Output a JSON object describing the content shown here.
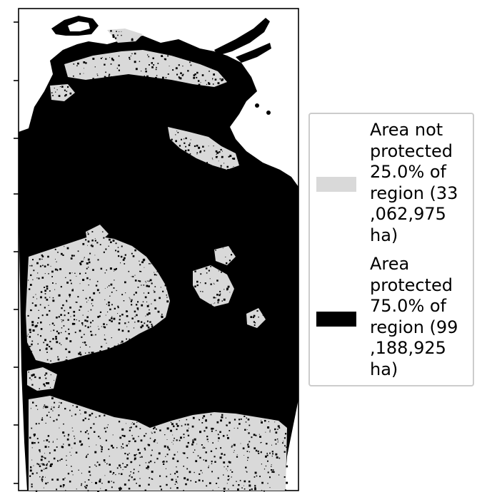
{
  "colors": {
    "not_protected": "#d9d9d9",
    "protected": "#000000",
    "frame": "#000000",
    "background": "#ffffff"
  },
  "legend": {
    "entries": [
      {
        "label": "Area not\nprotected\n25.0% of\nregion (33\n,062,975\nha)",
        "color": "#d9d9d9"
      },
      {
        "label": "Area\nprotected\n75.0% of\nregion (99\n,188,925\nha)",
        "color": "#000000"
      }
    ]
  },
  "map_data": {
    "regions": [
      {
        "name": "Area not protected",
        "percent": 25.0,
        "hectares": 33062975
      },
      {
        "name": "Area protected",
        "percent": 75.0,
        "hectares": 99188925
      }
    ]
  }
}
